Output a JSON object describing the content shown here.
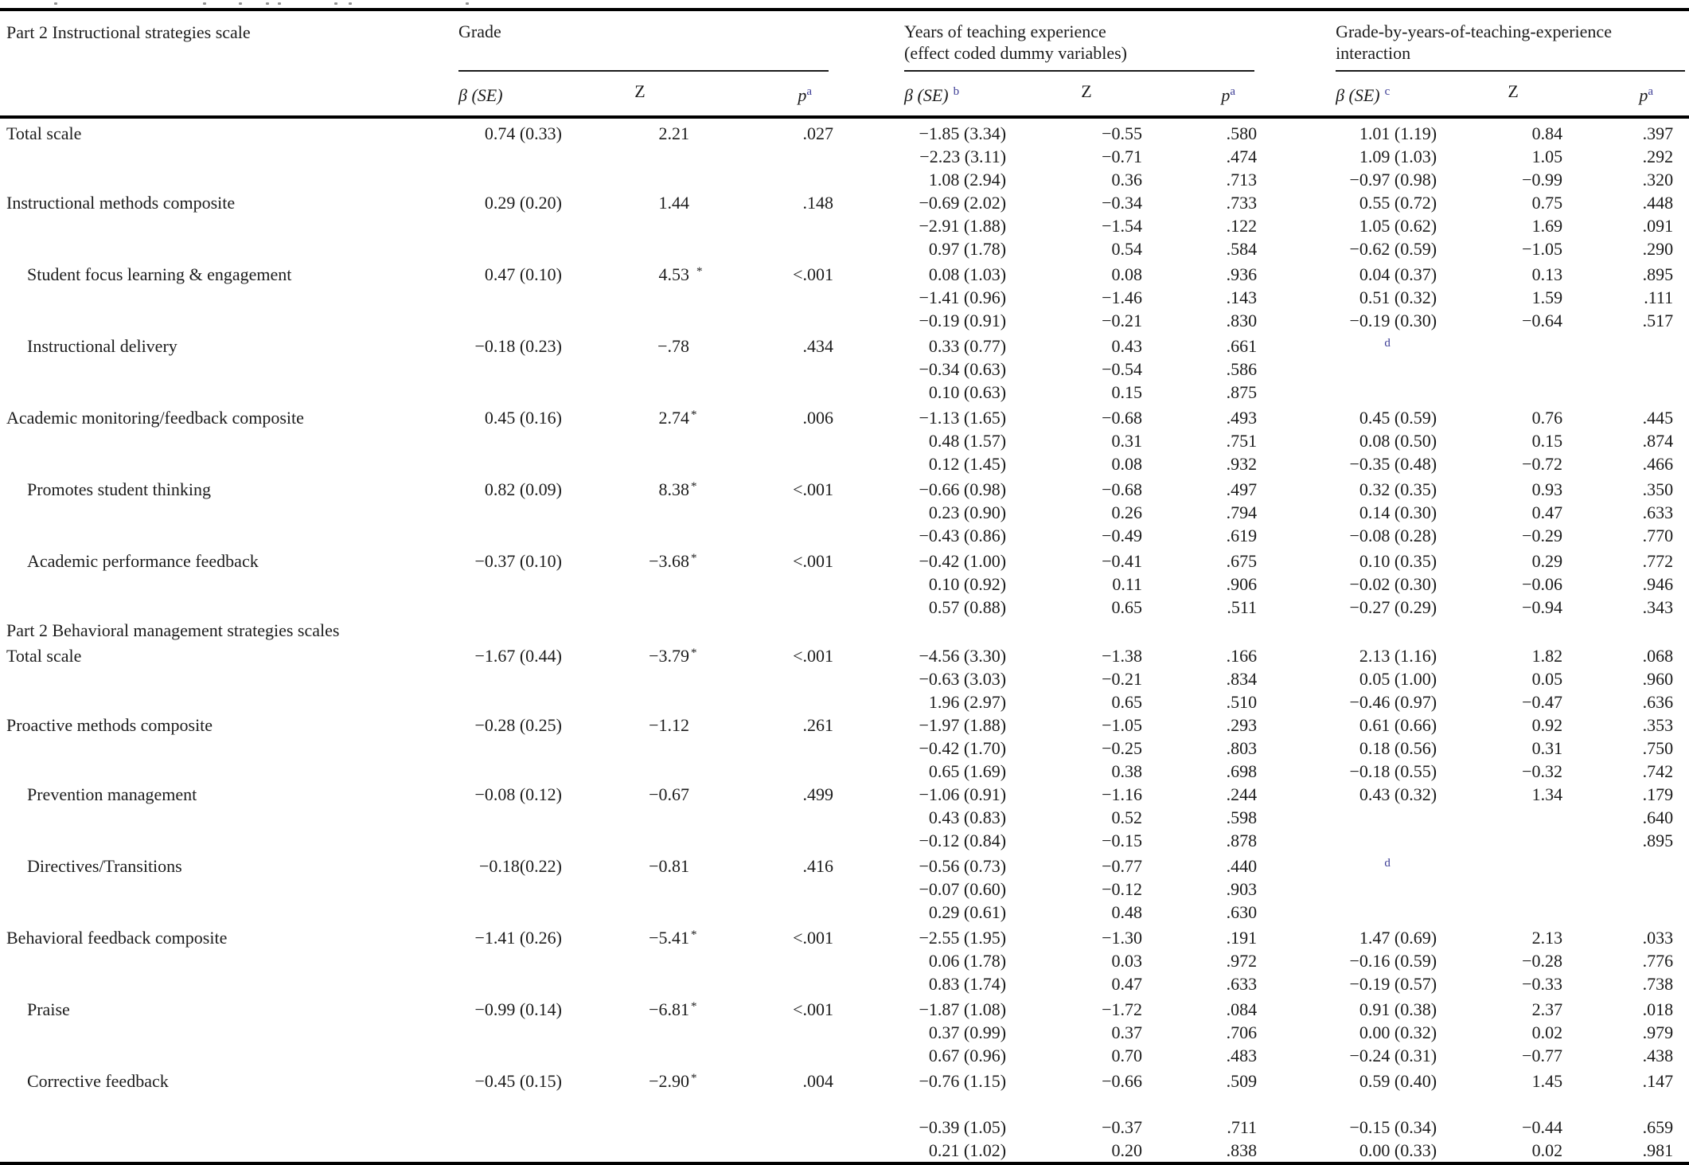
{
  "table": {
    "stub_header": "Part 2 Instructional strategies scale",
    "col_groups": [
      {
        "title_lines": [
          "Grade"
        ],
        "beta_label": "β (SE)",
        "beta_sup": "",
        "z_label": "Z",
        "p_label": "p",
        "p_sup": "a"
      },
      {
        "title_lines": [
          "Years of teaching experience",
          "(effect coded dummy variables)"
        ],
        "beta_label": "β (SE)",
        "beta_sup": "b",
        "z_label": "Z",
        "p_label": "p",
        "p_sup": "a"
      },
      {
        "title_lines": [
          "Grade-by-years-of-teaching-experience",
          "interaction"
        ],
        "beta_label": "β (SE)",
        "beta_sup": "c",
        "z_label": "Z",
        "p_label": "p",
        "p_sup": "a"
      }
    ],
    "footnote_marker": "d",
    "rows": [
      {
        "l": "Total scale",
        "gb": "0.74 (0.33)",
        "gz": "2.21",
        "gp": ".027",
        "yb": "−1.85 (3.34)",
        "yz": "−0.55",
        "yp": ".580",
        "ib": "1.01 (1.19)",
        "iz": "0.84",
        "ip": ".397"
      },
      {
        "yb": "−2.23 (3.11)",
        "yz": "−0.71",
        "yp": ".474",
        "ib": "1.09 (1.03)",
        "iz": "1.05",
        "ip": ".292"
      },
      {
        "yb": "1.08 (2.94)",
        "yz": "0.36",
        "yp": ".713",
        "ib": "−0.97 (0.98)",
        "iz": "−0.99",
        "ip": ".320"
      },
      {
        "l": "Instructional methods composite",
        "gb": "0.29 (0.20)",
        "gz": "1.44",
        "gp": ".148",
        "yb": "−0.69 (2.02)",
        "yz": "−0.34",
        "yp": ".733",
        "ib": "0.55 (0.72)",
        "iz": "0.75",
        "ip": ".448"
      },
      {
        "yb": "−2.91 (1.88)",
        "yz": "−1.54",
        "yp": ".122",
        "ib": "1.05 (0.62)",
        "iz": "1.69",
        "ip": ".091"
      },
      {
        "yb": "0.97 (1.78)",
        "yz": "0.54",
        "yp": ".584",
        "ib": "−0.62 (0.59)",
        "iz": "−1.05",
        "ip": ".290"
      },
      {
        "l": "Student focus learning & engagement",
        "ind": 1,
        "gb": "0.47 (0.10)",
        "gz": "4.53",
        "gs": "*",
        "gsp": 1,
        "gp": "<.001",
        "yb": "0.08 (1.03)",
        "yz": "0.08",
        "yp": ".936",
        "ib": "0.04 (0.37)",
        "iz": "0.13",
        "ip": ".895"
      },
      {
        "yb": "−1.41 (0.96)",
        "yz": "−1.46",
        "yp": ".143",
        "ib": "0.51 (0.32)",
        "iz": "1.59",
        "ip": ".111"
      },
      {
        "yb": "−0.19 (0.91)",
        "yz": "−0.21",
        "yp": ".830",
        "ib": "−0.19 (0.30)",
        "iz": "−0.64",
        "ip": ".517"
      },
      {
        "l": "Instructional delivery",
        "ind": 1,
        "gb": "−0.18 (0.23)",
        "gz": "−.78",
        "gp": ".434",
        "yb": "0.33 (0.77)",
        "yz": "0.43",
        "yp": ".661",
        "id": 1
      },
      {
        "yb": "−0.34 (0.63)",
        "yz": "−0.54",
        "yp": ".586"
      },
      {
        "yb": "0.10 (0.63)",
        "yz": "0.15",
        "yp": ".875"
      },
      {
        "l": "Academic monitoring/feedback composite",
        "gb": "0.45 (0.16)",
        "gz": "2.74",
        "gs": "*",
        "gp": ".006",
        "yb": "−1.13 (1.65)",
        "yz": "−0.68",
        "yp": ".493",
        "ib": "0.45 (0.59)",
        "iz": "0.76",
        "ip": ".445"
      },
      {
        "yb": "0.48 (1.57)",
        "yz": "0.31",
        "yp": ".751",
        "ib": "0.08 (0.50)",
        "iz": "0.15",
        "ip": ".874"
      },
      {
        "yb": "0.12 (1.45)",
        "yz": "0.08",
        "yp": ".932",
        "ib": "−0.35 (0.48)",
        "iz": "−0.72",
        "ip": ".466"
      },
      {
        "l": "Promotes student thinking",
        "ind": 1,
        "gb": "0.82 (0.09)",
        "gz": "8.38",
        "gs": "*",
        "gp": "<.001",
        "yb": "−0.66 (0.98)",
        "yz": "−0.68",
        "yp": ".497",
        "ib": "0.32 (0.35)",
        "iz": "0.93",
        "ip": ".350"
      },
      {
        "yb": "0.23 (0.90)",
        "yz": "0.26",
        "yp": ".794",
        "ib": "0.14 (0.30)",
        "iz": "0.47",
        "ip": ".633"
      },
      {
        "yb": "−0.43 (0.86)",
        "yz": "−0.49",
        "yp": ".619",
        "ib": "−0.08 (0.28)",
        "iz": "−0.29",
        "ip": ".770"
      },
      {
        "l": "Academic performance feedback",
        "ind": 1,
        "gb": "−0.37 (0.10)",
        "gz": "−3.68",
        "gs": "*",
        "gp": "<.001",
        "yb": "−0.42 (1.00)",
        "yz": "−0.41",
        "yp": ".675",
        "ib": "0.10 (0.35)",
        "iz": "0.29",
        "ip": ".772"
      },
      {
        "yb": "0.10 (0.92)",
        "yz": "0.11",
        "yp": ".906",
        "ib": "−0.02 (0.30)",
        "iz": "−0.06",
        "ip": ".946"
      },
      {
        "yb": "0.57 (0.88)",
        "yz": "0.65",
        "yp": ".511",
        "ib": "−0.27 (0.29)",
        "iz": "−0.94",
        "ip": ".343"
      },
      {
        "l": "Part 2 Behavioral management strategies scales",
        "sec": 1
      },
      {
        "l": "Total scale",
        "gb": "−1.67 (0.44)",
        "gz": "−3.79",
        "gs": "*",
        "gp": "<.001",
        "yb": "−4.56 (3.30)",
        "yz": "−1.38",
        "yp": ".166",
        "ib": "2.13 (1.16)",
        "iz": "1.82",
        "ip": ".068"
      },
      {
        "yb": "−0.63 (3.03)",
        "yz": "−0.21",
        "yp": ".834",
        "ib": "0.05 (1.00)",
        "iz": "0.05",
        "ip": ".960"
      },
      {
        "yb": "1.96 (2.97)",
        "yz": "0.65",
        "yp": ".510",
        "ib": "−0.46 (0.97)",
        "iz": "−0.47",
        "ip": ".636"
      },
      {
        "l": "Proactive methods composite",
        "gb": "−0.28 (0.25)",
        "gz": "−1.12",
        "gp": ".261",
        "yb": "−1.97 (1.88)",
        "yz": "−1.05",
        "yp": ".293",
        "ib": "0.61 (0.66)",
        "iz": "0.92",
        "ip": ".353"
      },
      {
        "yb": "−0.42 (1.70)",
        "yz": "−0.25",
        "yp": ".803",
        "ib": "0.18 (0.56)",
        "iz": "0.31",
        "ip": ".750"
      },
      {
        "yb": "0.65 (1.69)",
        "yz": "0.38",
        "yp": ".698",
        "ib": "−0.18 (0.55)",
        "iz": "−0.32",
        "ip": ".742"
      },
      {
        "l": "Prevention management",
        "ind": 1,
        "gb": "−0.08 (0.12)",
        "gz": "−0.67",
        "gp": ".499",
        "yb": "−1.06 (0.91)",
        "yz": "−1.16",
        "yp": ".244",
        "ib": "0.43 (0.32)",
        "iz": "1.34",
        "ip": ".179"
      },
      {
        "yb": "0.43 (0.83)",
        "yz": "0.52",
        "yp": ".598",
        "ip": ".640"
      },
      {
        "yb": "−0.12 (0.84)",
        "yz": "−0.15",
        "yp": ".878",
        "ip": ".895"
      },
      {
        "l": "Directives/Transitions",
        "ind": 1,
        "gb": "−0.18(0.22)",
        "gz": "−0.81",
        "gp": ".416",
        "yb": "−0.56 (0.73)",
        "yz": "−0.77",
        "yp": ".440",
        "id": 1
      },
      {
        "yb": "−0.07 (0.60)",
        "yz": "−0.12",
        "yp": ".903"
      },
      {
        "yb": "0.29 (0.61)",
        "yz": "0.48",
        "yp": ".630"
      },
      {
        "l": "Behavioral feedback composite",
        "gb": "−1.41 (0.26)",
        "gz": "−5.41",
        "gs": "*",
        "gp": "<.001",
        "yb": "−2.55 (1.95)",
        "yz": "−1.30",
        "yp": ".191",
        "ib": "1.47 (0.69)",
        "iz": "2.13",
        "ip": ".033"
      },
      {
        "yb": "0.06 (1.78)",
        "yz": "0.03",
        "yp": ".972",
        "ib": "−0.16 (0.59)",
        "iz": "−0.28",
        "ip": ".776"
      },
      {
        "yb": "0.83 (1.74)",
        "yz": "0.47",
        "yp": ".633",
        "ib": "−0.19 (0.57)",
        "iz": "−0.33",
        "ip": ".738"
      },
      {
        "l": "Praise",
        "ind": 1,
        "gb": "−0.99 (0.14)",
        "gz": "−6.81",
        "gs": "*",
        "gp": "<.001",
        "yb": "−1.87 (1.08)",
        "yz": "−1.72",
        "yp": ".084",
        "ib": "0.91 (0.38)",
        "iz": "2.37",
        "ip": ".018"
      },
      {
        "yb": "0.37 (0.99)",
        "yz": "0.37",
        "yp": ".706",
        "ib": "0.00 (0.32)",
        "iz": "0.02",
        "ip": ".979"
      },
      {
        "yb": "0.67 (0.96)",
        "yz": "0.70",
        "yp": ".483",
        "ib": "−0.24 (0.31)",
        "iz": "−0.77",
        "ip": ".438"
      },
      {
        "l": "Corrective feedback",
        "ind": 1,
        "gb": "−0.45 (0.15)",
        "gz": "−2.90",
        "gs": "*",
        "gp": ".004",
        "yb": "−0.76 (1.15)",
        "yz": "−0.66",
        "yp": ".509",
        "ib": "0.59 (0.40)",
        "iz": "1.45",
        "ip": ".147"
      },
      {
        "blank": 1
      },
      {
        "yb": "−0.39 (1.05)",
        "yz": "−0.37",
        "yp": ".711",
        "ib": "−0.15 (0.34)",
        "iz": "−0.44",
        "ip": ".659"
      },
      {
        "yb": "0.21 (1.02)",
        "yz": "0.20",
        "yp": ".838",
        "ib": "0.00 (0.33)",
        "iz": "0.02",
        "ip": ".981"
      }
    ]
  },
  "colors": {
    "text": "#1c1c1c",
    "rule": "#000000",
    "footnote_superscript": "#3b3b94"
  }
}
